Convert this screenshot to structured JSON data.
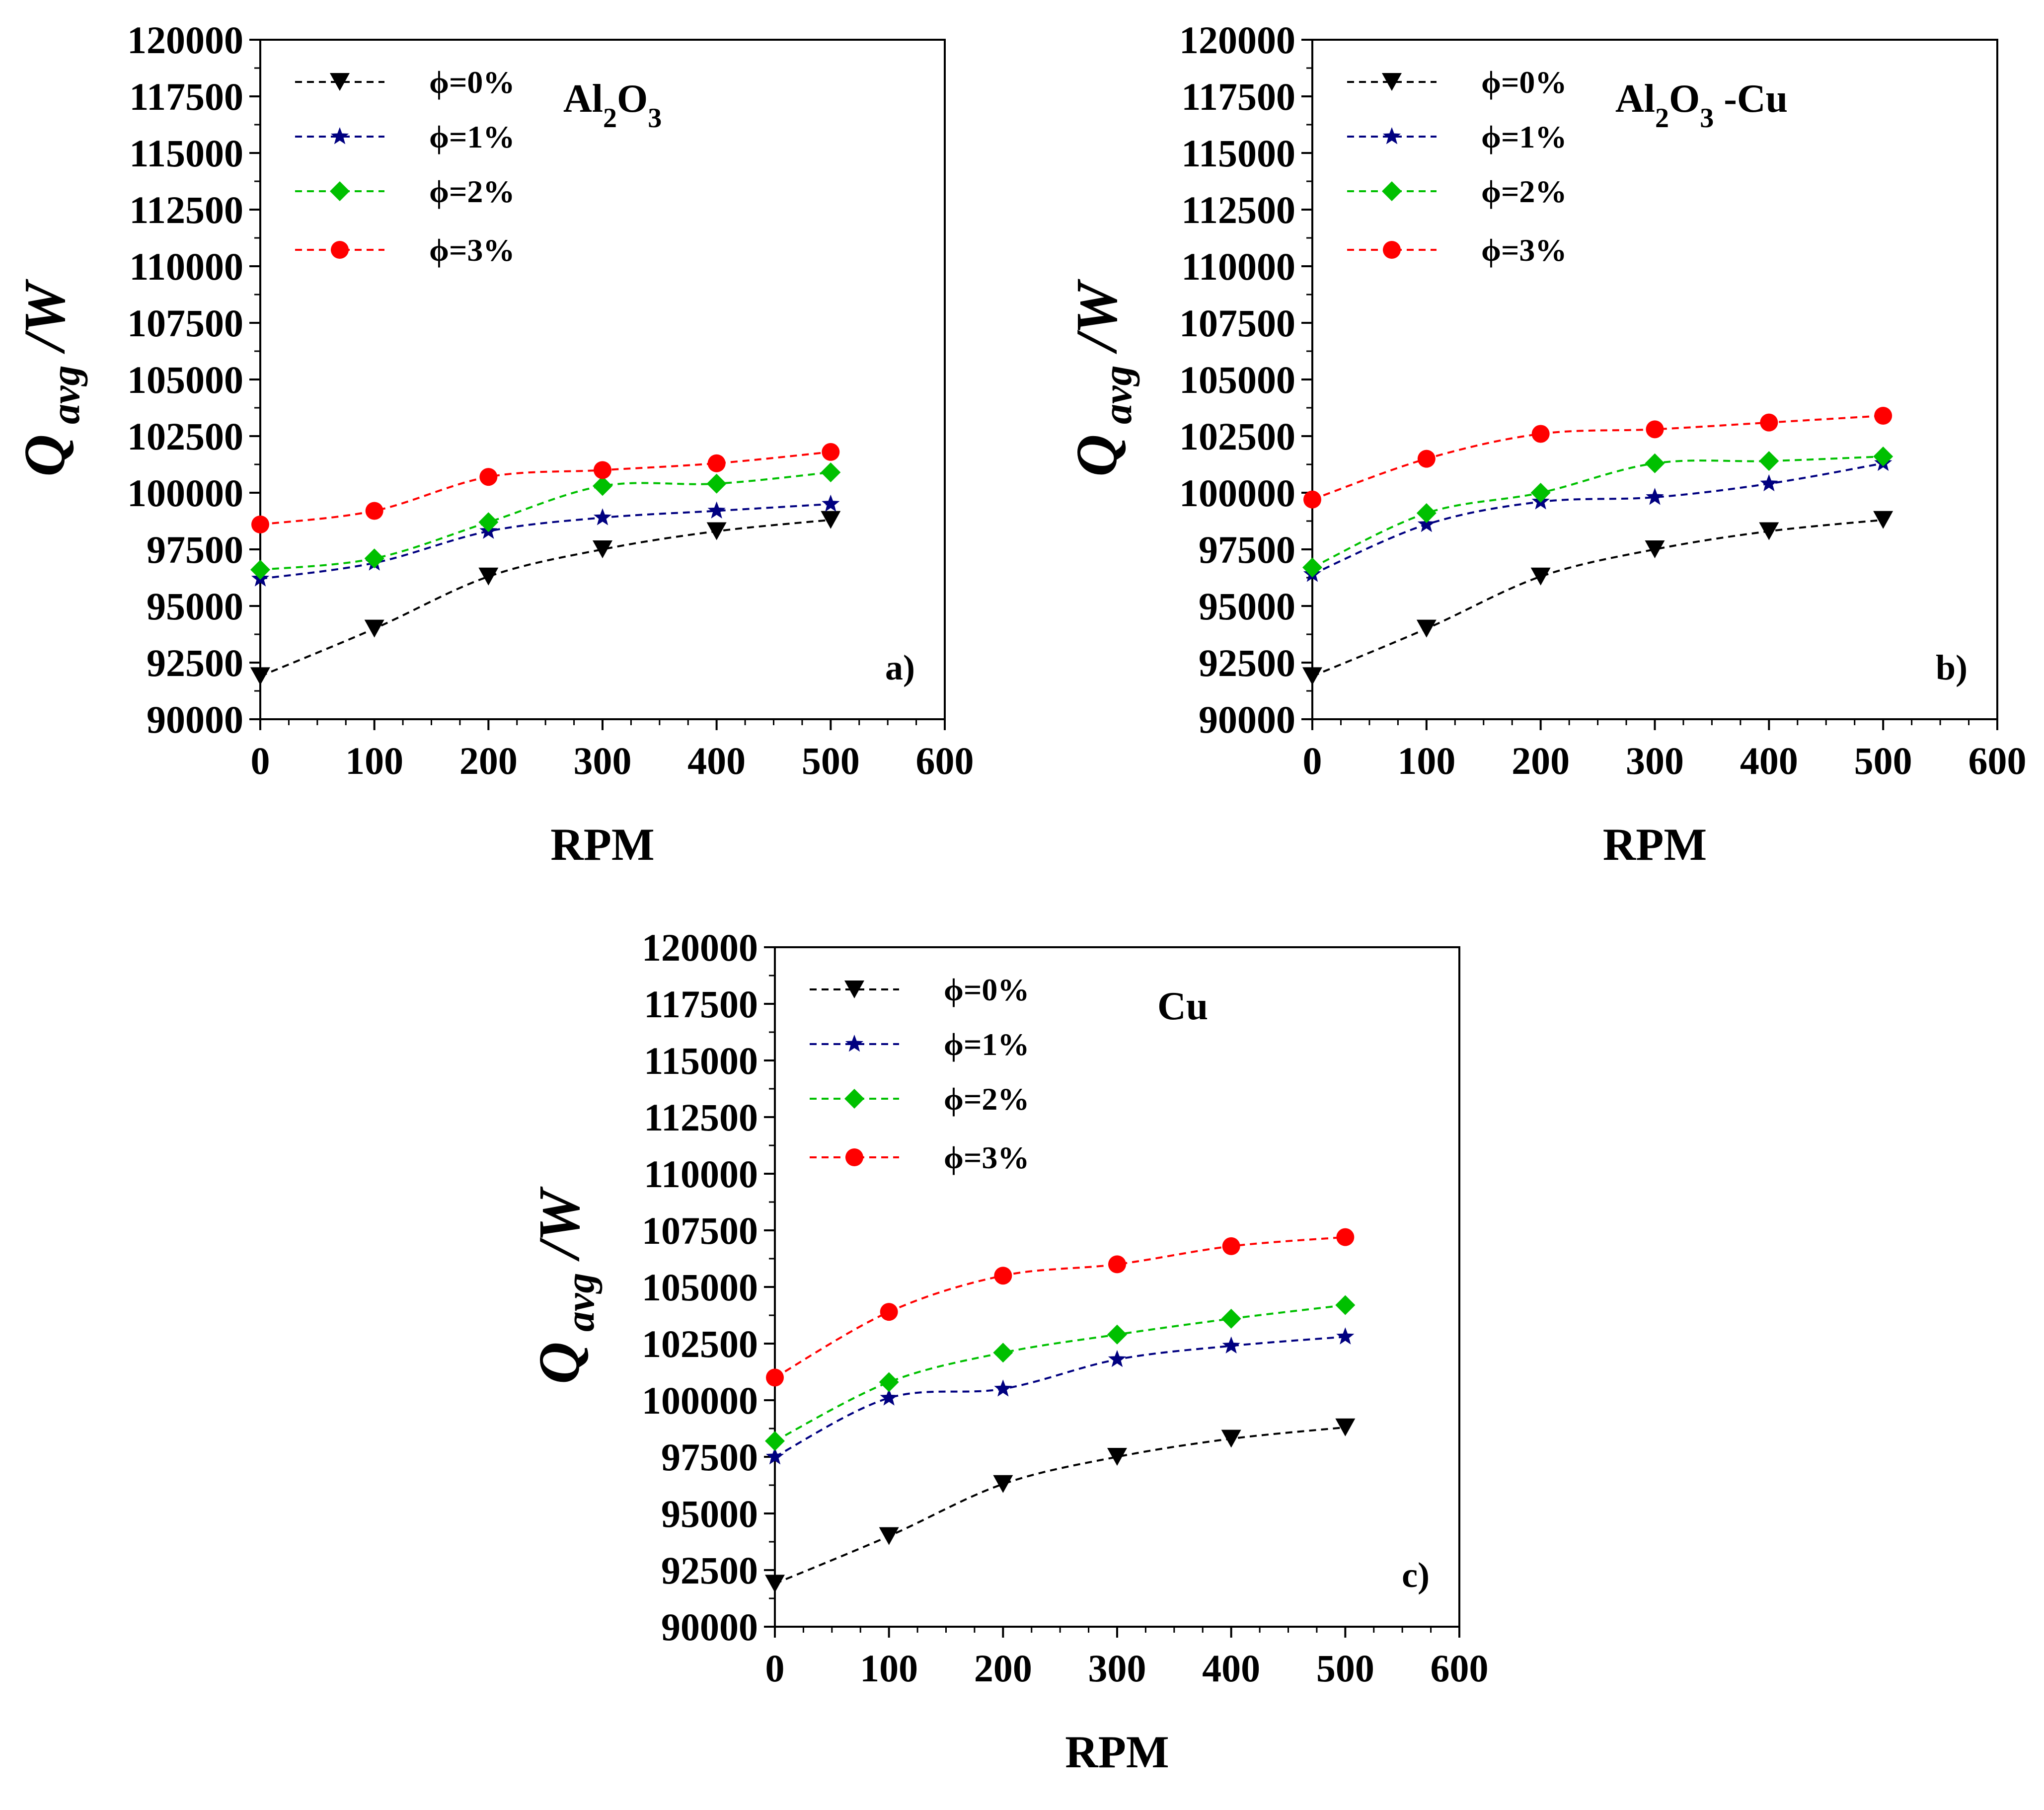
{
  "colors": {
    "phi0": "#000000",
    "phi1": "#000080",
    "phi2": "#00c000",
    "phi3": "#ff0000"
  },
  "chart_data": [
    {
      "type": "line",
      "panel_title": "Al2O3",
      "panel_tag": "a)",
      "xlabel": "RPM",
      "ylabel": {
        "symbol": "Q",
        "subscript": "avg",
        "unit": "/W"
      },
      "xlim": [
        0,
        600
      ],
      "ylim": [
        90000,
        120000
      ],
      "xticks": [
        "0",
        "100",
        "200",
        "300",
        "400",
        "500",
        "600"
      ],
      "yticks": [
        "90000",
        "92500",
        "95000",
        "97500",
        "100000",
        "102500",
        "105000",
        "107500",
        "110000",
        "112500",
        "115000",
        "117500",
        "120000"
      ],
      "x": [
        0,
        100,
        200,
        300,
        400,
        500
      ],
      "series": [
        {
          "name": "ϕ=0%",
          "marker": "triangle-down",
          "color": "#000000",
          "values": [
            91900,
            94000,
            96300,
            97500,
            98300,
            98800
          ]
        },
        {
          "name": "ϕ=1%",
          "marker": "star",
          "color": "#000080",
          "values": [
            96200,
            96900,
            98300,
            98900,
            99200,
            99500
          ]
        },
        {
          "name": "ϕ=2%",
          "marker": "diamond",
          "color": "#00c000",
          "values": [
            96600,
            97100,
            98700,
            100300,
            100400,
            100900
          ]
        },
        {
          "name": "ϕ=3%",
          "marker": "circle",
          "color": "#ff0000",
          "values": [
            98600,
            99200,
            100700,
            101000,
            101300,
            101800
          ]
        }
      ],
      "legend_position": "top-left",
      "grid": false
    },
    {
      "type": "line",
      "panel_title": "Al2O3 -Cu",
      "panel_tag": "b)",
      "xlabel": "RPM",
      "ylabel": {
        "symbol": "Q",
        "subscript": "avg",
        "unit": "/W"
      },
      "xlim": [
        0,
        600
      ],
      "ylim": [
        90000,
        120000
      ],
      "xticks": [
        "0",
        "100",
        "200",
        "300",
        "400",
        "500",
        "600"
      ],
      "yticks": [
        "90000",
        "92500",
        "95000",
        "97500",
        "100000",
        "102500",
        "105000",
        "107500",
        "110000",
        "112500",
        "115000",
        "117500",
        "120000"
      ],
      "x": [
        0,
        100,
        200,
        300,
        400,
        500
      ],
      "series": [
        {
          "name": "ϕ=0%",
          "marker": "triangle-down",
          "color": "#000000",
          "values": [
            91900,
            94000,
            96300,
            97500,
            98300,
            98800
          ]
        },
        {
          "name": "ϕ=1%",
          "marker": "star",
          "color": "#000080",
          "values": [
            96400,
            98600,
            99600,
            99800,
            100400,
            101300
          ]
        },
        {
          "name": "ϕ=2%",
          "marker": "diamond",
          "color": "#00c000",
          "values": [
            96700,
            99100,
            100000,
            101300,
            101400,
            101600
          ]
        },
        {
          "name": "ϕ=3%",
          "marker": "circle",
          "color": "#ff0000",
          "values": [
            99700,
            101500,
            102600,
            102800,
            103100,
            103400
          ]
        }
      ],
      "legend_position": "top-left",
      "grid": false
    },
    {
      "type": "line",
      "panel_title": "Cu",
      "panel_tag": "c)",
      "xlabel": "RPM",
      "ylabel": {
        "symbol": "Q",
        "subscript": "avg",
        "unit": "/W"
      },
      "xlim": [
        0,
        600
      ],
      "ylim": [
        90000,
        120000
      ],
      "xticks": [
        "0",
        "100",
        "200",
        "300",
        "400",
        "500",
        "600"
      ],
      "yticks": [
        "90000",
        "92500",
        "95000",
        "97500",
        "100000",
        "102500",
        "105000",
        "107500",
        "110000",
        "112500",
        "115000",
        "117500",
        "120000"
      ],
      "x": [
        0,
        100,
        200,
        300,
        400,
        500
      ],
      "series": [
        {
          "name": "ϕ=0%",
          "marker": "triangle-down",
          "color": "#000000",
          "values": [
            91900,
            94000,
            96300,
            97500,
            98300,
            98800
          ]
        },
        {
          "name": "ϕ=1%",
          "marker": "star",
          "color": "#000080",
          "values": [
            97500,
            100100,
            100500,
            101800,
            102400,
            102800
          ]
        },
        {
          "name": "ϕ=2%",
          "marker": "diamond",
          "color": "#00c000",
          "values": [
            98200,
            100800,
            102100,
            102900,
            103600,
            104200
          ]
        },
        {
          "name": "ϕ=3%",
          "marker": "circle",
          "color": "#ff0000",
          "values": [
            101000,
            103900,
            105500,
            106000,
            106800,
            107200
          ]
        }
      ],
      "legend_position": "top-left",
      "grid": false
    }
  ]
}
